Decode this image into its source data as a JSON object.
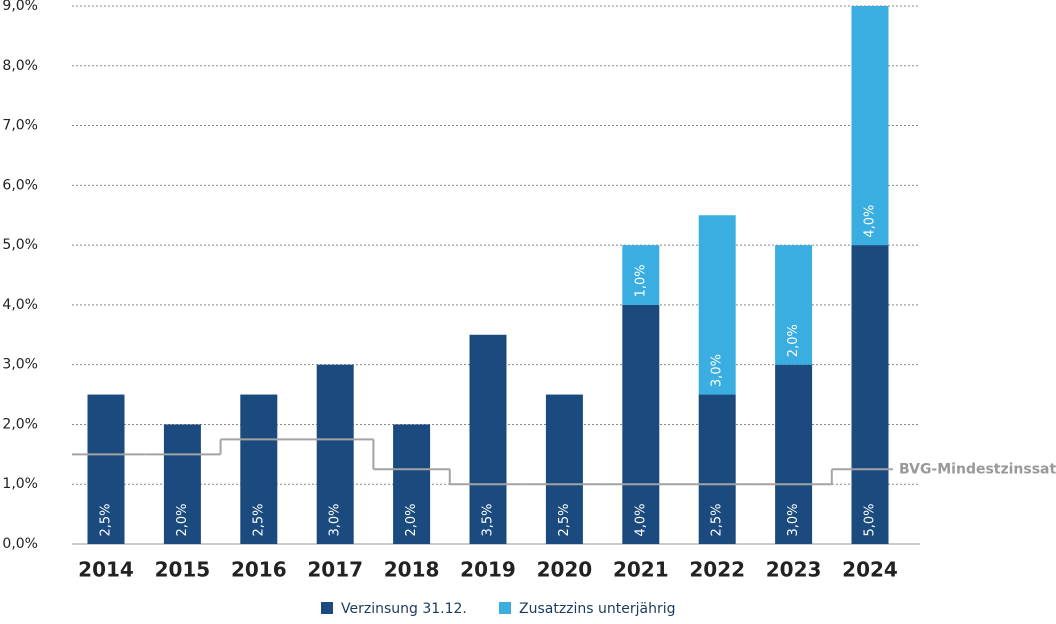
{
  "chart_data": {
    "type": "stacked_bar",
    "categories": [
      "2014",
      "2015",
      "2016",
      "2017",
      "2018",
      "2019",
      "2020",
      "2021",
      "2022",
      "2023",
      "2024"
    ],
    "series": [
      {
        "name": "Verzinsung 31.12.",
        "color": "#1b4a7e",
        "values": [
          2.5,
          2.0,
          2.5,
          3.0,
          2.0,
          3.5,
          2.5,
          4.0,
          2.5,
          3.0,
          5.0
        ],
        "value_labels": [
          "2,5%",
          "2,0%",
          "2,5%",
          "3,0%",
          "2,0%",
          "3,5%",
          "2,5%",
          "4,0%",
          "2,5%",
          "3,0%",
          "5,0%"
        ]
      },
      {
        "name": "Zusatzzins unterjährig",
        "color": "#3aaee0",
        "values": [
          null,
          null,
          null,
          null,
          null,
          null,
          null,
          1.0,
          3.0,
          2.0,
          4.0
        ],
        "value_labels": [
          null,
          null,
          null,
          null,
          null,
          null,
          null,
          "1,0%",
          "3,0%",
          "2,0%",
          "4,0%"
        ]
      }
    ],
    "reference_line": {
      "name": "BVG-Mindestzinssatz",
      "color": "#a3a3a3",
      "values": [
        1.5,
        1.5,
        1.75,
        1.75,
        1.25,
        1.0,
        1.0,
        1.0,
        1.0,
        1.0,
        1.25
      ]
    },
    "ylim": [
      0,
      9
    ],
    "yticks": [
      {
        "value": 0,
        "label": "0,0%"
      },
      {
        "value": 1,
        "label": "1,0%"
      },
      {
        "value": 2,
        "label": "2,0%"
      },
      {
        "value": 3,
        "label": "3,0%"
      },
      {
        "value": 4,
        "label": "4,0%"
      },
      {
        "value": 5,
        "label": "5,0%"
      },
      {
        "value": 6,
        "label": "6,0%"
      },
      {
        "value": 7,
        "label": "7,0%"
      },
      {
        "value": 8,
        "label": "8,0%"
      },
      {
        "value": 9,
        "label": "9,0%"
      }
    ],
    "grid": true
  }
}
